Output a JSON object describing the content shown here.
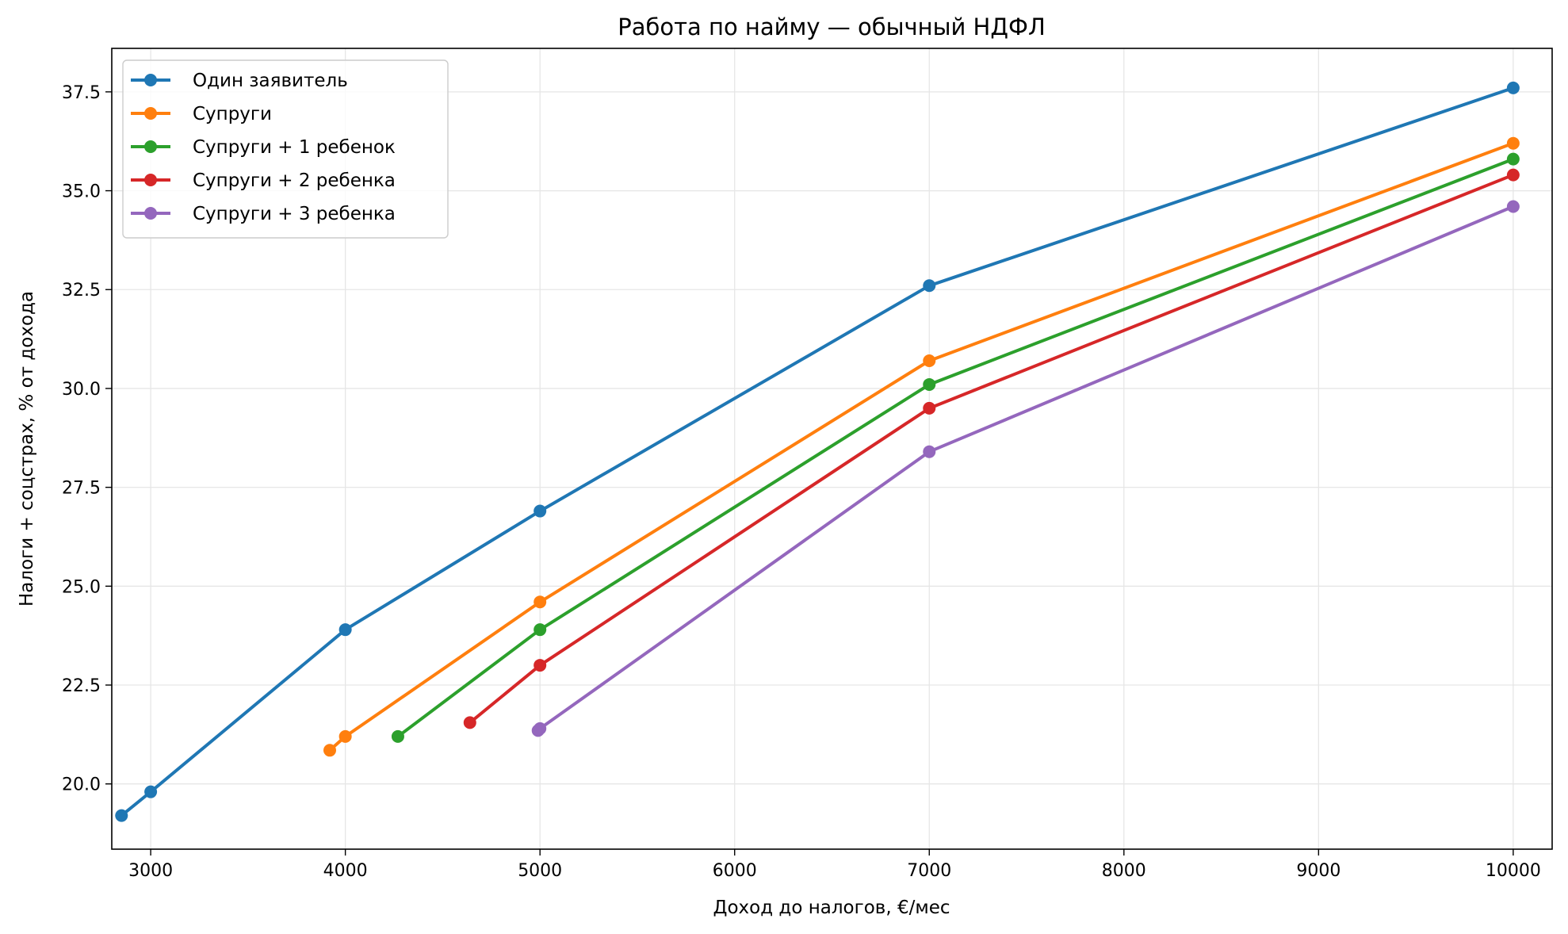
{
  "chart_data": {
    "type": "line",
    "title": "Работа по найму — обычный НДФЛ",
    "xlabel": "Доход до налогов, €/мес",
    "ylabel": "Налоги + соцстрах, % от дохода",
    "xlim": [
      2800,
      10200
    ],
    "ylim": [
      18.35,
      38.6
    ],
    "xticks": [
      3000,
      4000,
      5000,
      6000,
      7000,
      8000,
      9000,
      10000
    ],
    "yticks": [
      20.0,
      22.5,
      25.0,
      27.5,
      30.0,
      32.5,
      35.0,
      37.5
    ],
    "grid": true,
    "legend_position": "upper-left",
    "series": [
      {
        "name": "Один заявитель",
        "color": "#1f77b4",
        "points": [
          [
            2850,
            19.2
          ],
          [
            3000,
            19.8
          ],
          [
            4000,
            23.9
          ],
          [
            5000,
            26.9
          ],
          [
            7000,
            32.6
          ],
          [
            10000,
            37.6
          ]
        ]
      },
      {
        "name": "Супруги",
        "color": "#ff7f0e",
        "points": [
          [
            3920,
            20.85
          ],
          [
            4000,
            21.2
          ],
          [
            5000,
            24.6
          ],
          [
            7000,
            30.7
          ],
          [
            10000,
            36.2
          ]
        ]
      },
      {
        "name": "Супруги + 1 ребенок",
        "color": "#2ca02c",
        "points": [
          [
            4270,
            21.2
          ],
          [
            5000,
            23.9
          ],
          [
            7000,
            30.1
          ],
          [
            10000,
            35.8
          ]
        ]
      },
      {
        "name": "Супруги + 2 ребенка",
        "color": "#d62728",
        "points": [
          [
            4640,
            21.55
          ],
          [
            5000,
            23.0
          ],
          [
            7000,
            29.5
          ],
          [
            10000,
            35.4
          ]
        ]
      },
      {
        "name": "Супруги + 3 ребенка",
        "color": "#9467bd",
        "points": [
          [
            4990,
            21.35
          ],
          [
            5000,
            21.4
          ],
          [
            7000,
            28.4
          ],
          [
            10000,
            34.6
          ]
        ]
      }
    ]
  }
}
